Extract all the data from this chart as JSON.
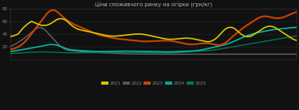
{
  "title": "Ціни споживчого ринку на огірки (грн/кг)",
  "background_color": "#111111",
  "text_color": "#888888",
  "title_color": "#bbbbbb",
  "ylim": [
    0,
    80
  ],
  "legend_items": [
    {
      "label": "2021",
      "color": "#d4c400"
    },
    {
      "label": "2022",
      "color": "#555555"
    },
    {
      "label": "2023",
      "color": "#cc4400"
    },
    {
      "label": "2024",
      "color": "#00aa88"
    },
    {
      "label": "2025",
      "color": "#007755"
    }
  ],
  "series_colors": {
    "yellow": "#ddc800",
    "gray": "#666666",
    "orange": "#cc4400",
    "teal": "#00bbaa",
    "dark_teal": "#007755"
  },
  "series_lw": {
    "yellow": 1.2,
    "gray": 1.0,
    "orange": 1.5,
    "teal": 1.2,
    "dark_teal": 1.0
  },
  "yticks": [
    20,
    40,
    60,
    80
  ],
  "ytick_fontsize": 4,
  "title_fontsize": 4.8,
  "legend_fontsize": 4
}
